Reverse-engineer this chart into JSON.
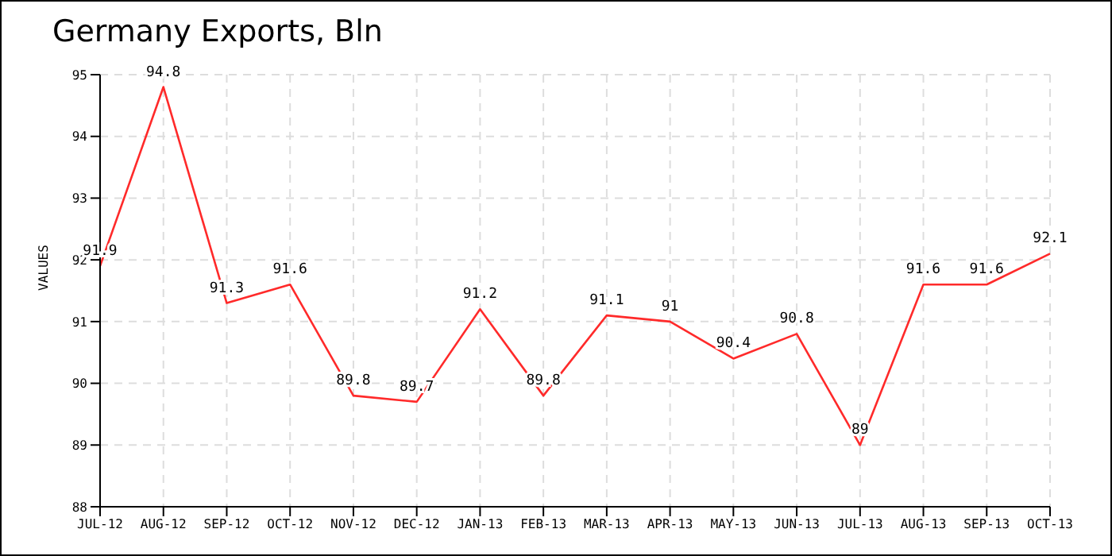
{
  "chart_data": {
    "type": "line",
    "title": "Germany Exports, Bln",
    "ylabel": "VALUES",
    "categories": [
      "JUL-12",
      "AUG-12",
      "SEP-12",
      "OCT-12",
      "NOV-12",
      "DEC-12",
      "JAN-13",
      "FEB-13",
      "MAR-13",
      "APR-13",
      "MAY-13",
      "JUN-13",
      "JUL-13",
      "AUG-13",
      "SEP-13",
      "OCT-13"
    ],
    "series": [
      {
        "color": "#ff2a2a",
        "values": [
          91.9,
          94.8,
          91.3,
          91.6,
          89.8,
          89.7,
          91.2,
          89.8,
          91.1,
          91,
          90.4,
          90.8,
          89,
          91.6,
          91.6,
          92.1
        ]
      }
    ],
    "ylim": [
      88,
      95
    ],
    "yticks": [
      88,
      89,
      90,
      91,
      92,
      93,
      94,
      95
    ],
    "grid": true,
    "data_labels": true,
    "marker": "none",
    "line_style": "solid"
  }
}
